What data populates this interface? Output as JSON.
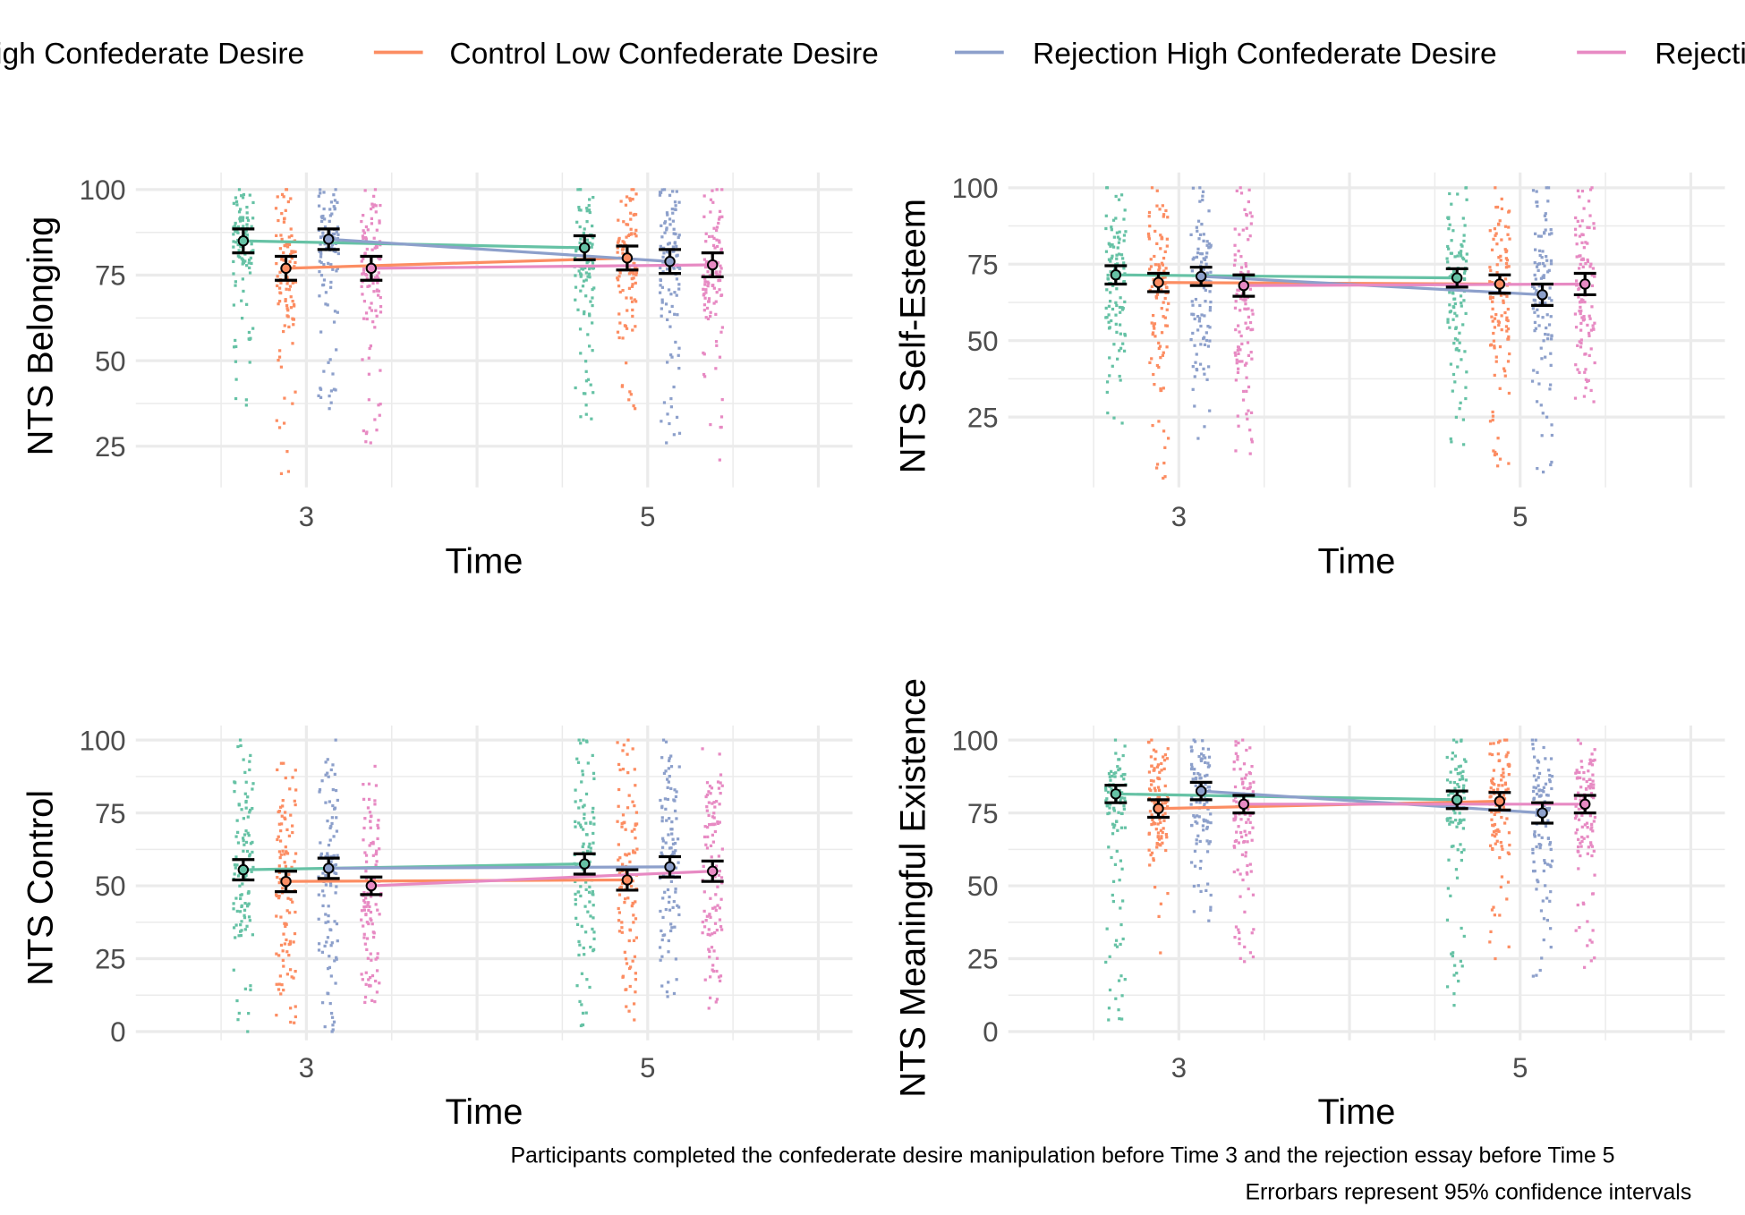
{
  "colors": {
    "Control High Confederate Desire": "#66c2a5",
    "Control Low Confederate Desire": "#fc8d62",
    "Rejection High Confederate Desire": "#8da0cb",
    "Rejection Low Confederate Desire": "#e78ac3",
    "grid": "#ebebeb",
    "errorbar": "#000000"
  },
  "legend": {
    "position": "top",
    "entries": [
      "Control High Confederate Desire",
      "Control Low Confederate Desire",
      "Rejection High Confederate Desire",
      "Rejection Low Confederate Desire"
    ]
  },
  "captions": {
    "line1": "Participants completed the confederate desire manipulation before Time 3 and the rejection essay before Time 5",
    "line2": "Errorbars represent 95% confidence intervals"
  },
  "chart_data": [
    {
      "type": "line",
      "ylabel": "NTS Belonging",
      "xlabel": "Time",
      "x": [
        3,
        5
      ],
      "xlim": [
        2,
        6.2
      ],
      "ylim": [
        13,
        105
      ],
      "yticks": [
        25,
        50,
        75,
        100
      ],
      "series": [
        {
          "name": "Control High Confederate Desire",
          "values": [
            85,
            83
          ],
          "ci": [
            3.5,
            3.5
          ]
        },
        {
          "name": "Control Low Confederate Desire",
          "values": [
            77,
            80
          ],
          "ci": [
            3.5,
            3.5
          ]
        },
        {
          "name": "Rejection High Confederate Desire",
          "values": [
            85.5,
            79
          ],
          "ci": [
            3,
            3.5
          ]
        },
        {
          "name": "Rejection Low Confederate Desire",
          "values": [
            77,
            78
          ],
          "ci": [
            3.5,
            3.5
          ]
        }
      ],
      "raw_range": [
        {
          "name": "Control High Confederate Desire",
          "t3": [
            37,
            100
          ],
          "t5": [
            33,
            100
          ]
        },
        {
          "name": "Control Low Confederate Desire",
          "t3": [
            17,
            100
          ],
          "t5": [
            36,
            100
          ]
        },
        {
          "name": "Rejection High Confederate Desire",
          "t3": [
            36,
            100
          ],
          "t5": [
            26,
            100
          ]
        },
        {
          "name": "Rejection Low Confederate Desire",
          "t3": [
            26,
            100
          ],
          "t5": [
            21,
            100
          ]
        }
      ]
    },
    {
      "type": "line",
      "ylabel": "NTS Self-Esteem",
      "xlabel": "Time",
      "x": [
        3,
        5
      ],
      "xlim": [
        2,
        6.2
      ],
      "ylim": [
        2,
        105
      ],
      "yticks": [
        25,
        50,
        75,
        100
      ],
      "series": [
        {
          "name": "Control High Confederate Desire",
          "values": [
            71.5,
            70.5
          ],
          "ci": [
            3,
            3
          ]
        },
        {
          "name": "Control Low Confederate Desire",
          "values": [
            69,
            68.5
          ],
          "ci": [
            3,
            3
          ]
        },
        {
          "name": "Rejection High Confederate Desire",
          "values": [
            71,
            65
          ],
          "ci": [
            3,
            3.5
          ]
        },
        {
          "name": "Rejection Low Confederate Desire",
          "values": [
            68,
            68.5
          ],
          "ci": [
            3.5,
            3.5
          ]
        }
      ],
      "raw_range": [
        {
          "name": "Control High Confederate Desire",
          "t3": [
            23,
            100
          ],
          "t5": [
            16,
            100
          ]
        },
        {
          "name": "Control Low Confederate Desire",
          "t3": [
            5,
            100
          ],
          "t5": [
            9,
            100
          ]
        },
        {
          "name": "Rejection High Confederate Desire",
          "t3": [
            18,
            100
          ],
          "t5": [
            7,
            100
          ]
        },
        {
          "name": "Rejection Low Confederate Desire",
          "t3": [
            13,
            100
          ],
          "t5": [
            30,
            100
          ]
        }
      ]
    },
    {
      "type": "line",
      "ylabel": "NTS Control",
      "xlabel": "Time",
      "x": [
        3,
        5
      ],
      "xlim": [
        2,
        6.2
      ],
      "ylim": [
        -3,
        105
      ],
      "yticks": [
        0,
        25,
        50,
        75,
        100
      ],
      "series": [
        {
          "name": "Control High Confederate Desire",
          "values": [
            55.5,
            57.5
          ],
          "ci": [
            3.5,
            3.5
          ]
        },
        {
          "name": "Control Low Confederate Desire",
          "values": [
            51.5,
            52
          ],
          "ci": [
            3.5,
            3.5
          ]
        },
        {
          "name": "Rejection High Confederate Desire",
          "values": [
            56,
            56.5
          ],
          "ci": [
            3.5,
            3.5
          ]
        },
        {
          "name": "Rejection Low Confederate Desire",
          "values": [
            50,
            55
          ],
          "ci": [
            3,
            3.5
          ]
        }
      ],
      "raw_range": [
        {
          "name": "Control High Confederate Desire",
          "t3": [
            0,
            100
          ],
          "t5": [
            2,
            100
          ]
        },
        {
          "name": "Control Low Confederate Desire",
          "t3": [
            3,
            92
          ],
          "t5": [
            4,
            100
          ]
        },
        {
          "name": "Rejection High Confederate Desire",
          "t3": [
            0,
            100
          ],
          "t5": [
            12,
            100
          ]
        },
        {
          "name": "Rejection Low Confederate Desire",
          "t3": [
            10,
            91
          ],
          "t5": [
            8,
            97
          ]
        }
      ]
    },
    {
      "type": "line",
      "ylabel": "NTS Meaningful Existence",
      "xlabel": "Time",
      "x": [
        3,
        5
      ],
      "xlim": [
        2,
        6.2
      ],
      "ylim": [
        -3,
        105
      ],
      "yticks": [
        0,
        25,
        50,
        75,
        100
      ],
      "series": [
        {
          "name": "Control High Confederate Desire",
          "values": [
            81.5,
            79.5
          ],
          "ci": [
            3,
            3
          ]
        },
        {
          "name": "Control Low Confederate Desire",
          "values": [
            76.5,
            79
          ],
          "ci": [
            3,
            3
          ]
        },
        {
          "name": "Rejection High Confederate Desire",
          "values": [
            82.5,
            75
          ],
          "ci": [
            3,
            3.5
          ]
        },
        {
          "name": "Rejection Low Confederate Desire",
          "values": [
            78,
            78
          ],
          "ci": [
            3,
            3
          ]
        }
      ],
      "raw_range": [
        {
          "name": "Control High Confederate Desire",
          "t3": [
            4,
            100
          ],
          "t5": [
            9,
            100
          ]
        },
        {
          "name": "Control Low Confederate Desire",
          "t3": [
            27,
            100
          ],
          "t5": [
            25,
            100
          ]
        },
        {
          "name": "Rejection High Confederate Desire",
          "t3": [
            38,
            100
          ],
          "t5": [
            19,
            100
          ]
        },
        {
          "name": "Rejection Low Confederate Desire",
          "t3": [
            24,
            100
          ],
          "t5": [
            22,
            100
          ]
        }
      ]
    }
  ]
}
